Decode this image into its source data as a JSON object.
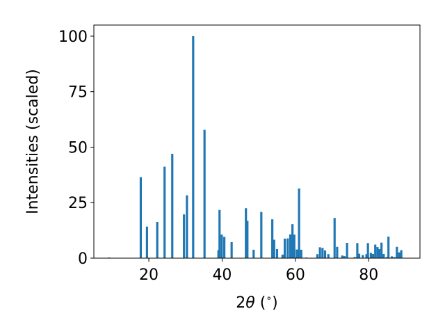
{
  "chart_data": {
    "type": "bar",
    "title": "",
    "xlabel_parts": {
      "prefix": "2",
      "symbol": "θ",
      "suffix": " (",
      "degree": "∘",
      "close": ")"
    },
    "ylabel": "Intensities (scaled)",
    "xlim": [
      5,
      94
    ],
    "ylim": [
      0,
      105
    ],
    "xticks": [
      20,
      40,
      60,
      80
    ],
    "yticks": [
      0,
      25,
      50,
      75,
      100
    ],
    "bar_width_deg": 0.6,
    "bar_color": "#1f77b4",
    "grid": false,
    "legend": "none",
    "x": [
      9.2,
      17.8,
      19.5,
      22.3,
      24.3,
      26.4,
      29.6,
      30.4,
      32.1,
      35.2,
      39.0,
      39.3,
      39.9,
      40.6,
      42.6,
      46.5,
      46.9,
      48.6,
      50.7,
      53.7,
      54.2,
      55.0,
      56.5,
      57.1,
      57.9,
      58.6,
      59.2,
      59.7,
      60.4,
      61.0,
      61.6,
      63.0,
      66.0,
      66.7,
      67.4,
      68.1,
      69.0,
      70.7,
      71.4,
      72.8,
      73.4,
      74.1,
      76.2,
      76.9,
      77.4,
      78.4,
      79.4,
      79.8,
      80.6,
      81.2,
      81.8,
      82.4,
      82.9,
      83.5,
      84.1,
      84.9,
      85.4,
      86.3,
      87.0,
      87.7,
      88.3,
      88.9
    ],
    "values": [
      0.3,
      36.5,
      14.2,
      16.3,
      41.2,
      47.0,
      19.7,
      28.3,
      100.0,
      57.8,
      3.6,
      21.7,
      10.6,
      9.6,
      7.2,
      22.5,
      16.8,
      3.8,
      20.8,
      17.5,
      8.3,
      4.1,
      1.6,
      8.8,
      8.9,
      10.7,
      15.3,
      10.6,
      3.9,
      31.4,
      3.8,
      0.3,
      1.8,
      4.9,
      4.6,
      3.5,
      1.8,
      18.1,
      5.1,
      1.2,
      0.9,
      6.9,
      0.5,
      6.8,
      2.0,
      1.4,
      1.8,
      6.8,
      2.4,
      1.9,
      6.1,
      5.0,
      4.1,
      7.0,
      1.9,
      0.5,
      9.7,
      0.8,
      0.5,
      5.1,
      2.6,
      3.6
    ]
  }
}
